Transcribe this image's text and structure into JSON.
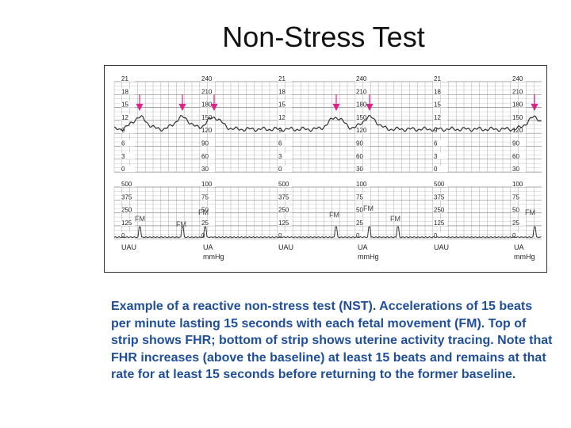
{
  "slide": {
    "title": "Non-Stress Test",
    "caption": "Example of a reactive non-stress test (NST). Accelerations of 15 beats per minute lasting 15 seconds with each fetal movement (FM). Top of strip shows FHR; bottom of strip shows uterine activity tracing. Note that FHR increases (above the baseline) at least 15 beats and remains at that rate for at least 15 seconds before returning to the former baseline."
  },
  "strip": {
    "top_left_scale": [
      "21",
      "18",
      "15",
      "12",
      "9",
      "6",
      "3",
      "0"
    ],
    "top_right_scale": [
      "240",
      "210",
      "180",
      "150",
      "120",
      "90",
      "60",
      "30"
    ],
    "bottom_left_scale": [
      "500",
      "375",
      "250",
      "125",
      "0"
    ],
    "bottom_right_scale": [
      "100",
      "75",
      "50",
      "25",
      "0"
    ],
    "bottom_left_unit": "UAU",
    "bottom_right_unit_line1": "UA",
    "bottom_right_unit_line2": "mmHg",
    "fm_label": "FM",
    "colors": {
      "arrow": "#e0218a",
      "trace": "#333333",
      "grid": "#888888"
    }
  }
}
